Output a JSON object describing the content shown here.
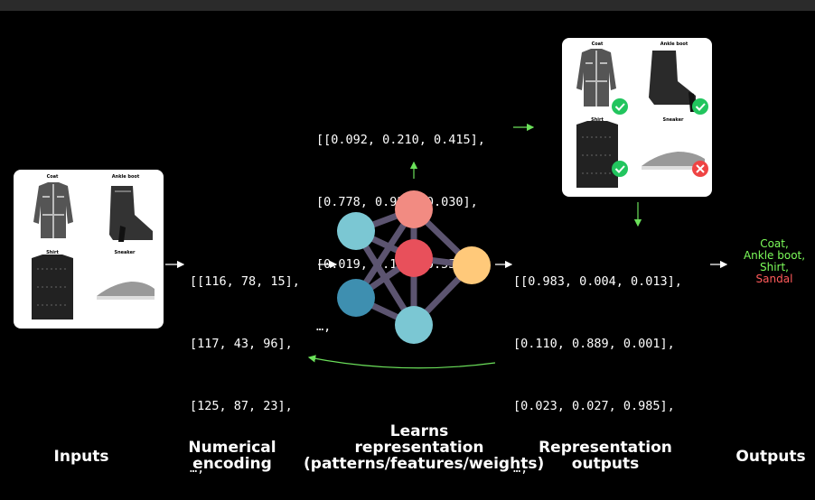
{
  "input_card": {
    "labels": [
      "Coat",
      "Ankle boot",
      "Shirt",
      "Sneaker"
    ]
  },
  "output_card": {
    "labels": [
      "Coat",
      "Ankle boot",
      "Shirt",
      "Sneaker"
    ]
  },
  "numerical_encoding": [
    "[[116, 78, 15],",
    "[117, 43, 96],",
    "[125, 87, 23],",
    "…,"
  ],
  "weights": [
    "[[0.092, 0.210, 0.415],",
    "[0.778, 0.929, 0.030],",
    "[0.019, 0.182, 0.555],",
    "…,"
  ],
  "representation_outputs": [
    "[[0.983, 0.004, 0.013],",
    "[0.110, 0.889, 0.001],",
    "[0.023, 0.027, 0.985],",
    "…,"
  ],
  "outputs": {
    "items": [
      "Coat,",
      "Ankle boot,",
      "Shirt,",
      "Sandal"
    ],
    "correct_color": "#7CFC5A",
    "wrong_color": "#FF5A5A"
  },
  "stages": {
    "inputs": "Inputs",
    "numerical_encoding": [
      "Numerical",
      "encoding"
    ],
    "learns": [
      "Learns",
      "representation",
      "(patterns/features/weights)"
    ],
    "representation_outputs": [
      "Representation",
      "outputs"
    ],
    "outputs": "Outputs"
  },
  "colors": {
    "arrow_green": "#6BE05A",
    "node_salmon": "#F28B82",
    "node_red": "#E8505B",
    "node_orange": "#FFC97A",
    "node_teal_light": "#7BC7D3",
    "node_teal_dark": "#3E8FB0",
    "edge": "#5C5470"
  }
}
